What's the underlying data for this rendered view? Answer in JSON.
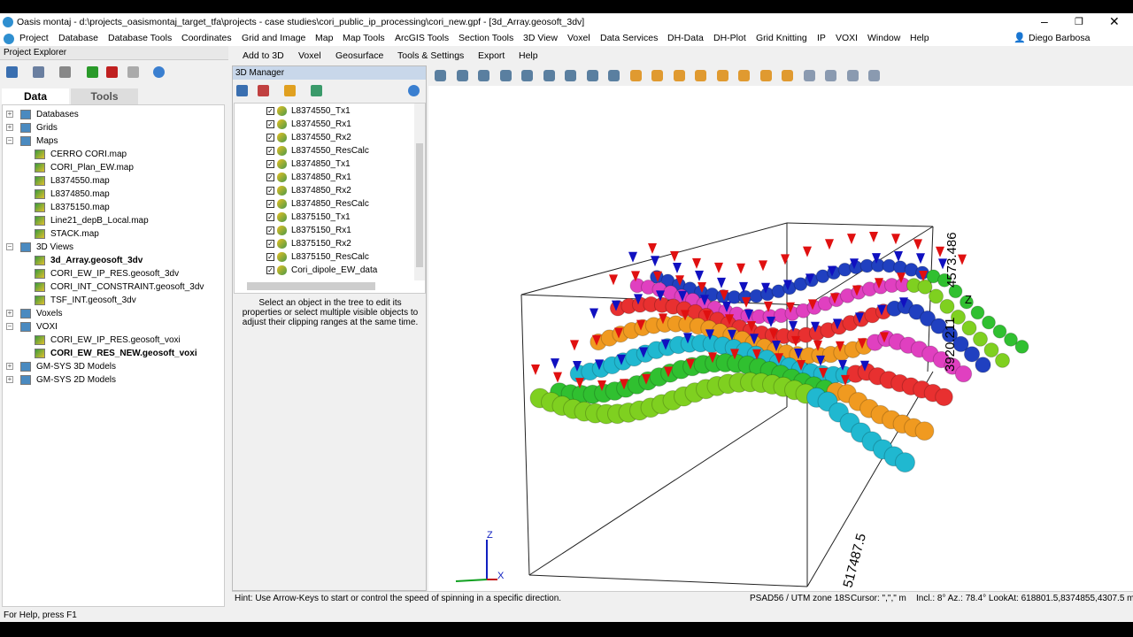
{
  "window": {
    "title": "Oasis montaj - d:\\projects_oasismontaj_target_tfa\\projects - case studies\\cori_public_ip_processing\\cori_new.gpf - [3d_Array.geosoft_3dv]"
  },
  "menu": [
    "Project",
    "Database",
    "Database Tools",
    "Coordinates",
    "Grid and Image",
    "Map",
    "Map Tools",
    "ArcGIS Tools",
    "Section Tools",
    "3D View",
    "Voxel",
    "Data Services",
    "DH-Data",
    "DH-Plot",
    "Grid Knitting",
    "IP",
    "VOXI",
    "Window",
    "Help"
  ],
  "user": "Diego Barbosa",
  "project_explorer": {
    "title": "Project Explorer",
    "tabs": [
      "Data",
      "Tools"
    ],
    "tree": [
      {
        "label": "Databases"
      },
      {
        "label": "Grids"
      },
      {
        "label": "Maps",
        "children": [
          {
            "label": "CERRO CORI.map"
          },
          {
            "label": "CORI_Plan_EW.map"
          },
          {
            "label": "L8374550.map"
          },
          {
            "label": "L8374850.map"
          },
          {
            "label": "L8375150.map"
          },
          {
            "label": "Line21_depB_Local.map"
          },
          {
            "label": "STACK.map"
          }
        ]
      },
      {
        "label": "3D Views",
        "children": [
          {
            "label": "3d_Array.geosoft_3dv",
            "bold": true
          },
          {
            "label": "CORI_EW_IP_RES.geosoft_3dv"
          },
          {
            "label": "CORI_INT_CONSTRAINT.geosoft_3dv"
          },
          {
            "label": "TSF_INT.geosoft_3dv"
          }
        ]
      },
      {
        "label": "Voxels"
      },
      {
        "label": "VOXI",
        "children": [
          {
            "label": "CORI_EW_IP_RES.geosoft_voxi"
          },
          {
            "label": "CORI_EW_RES_NEW.geosoft_voxi",
            "bold": true
          }
        ]
      },
      {
        "label": "GM-SYS 3D Models"
      },
      {
        "label": "GM-SYS 2D Models"
      }
    ]
  },
  "view_menu": [
    "Add to 3D",
    "Voxel",
    "Geosurface",
    "Tools & Settings",
    "Export",
    "Help"
  ],
  "manager": {
    "title": "3D Manager",
    "items": [
      "L8374550_Tx1",
      "L8374550_Rx1",
      "L8374550_Rx2",
      "L8374550_ResCalc",
      "L8374850_Tx1",
      "L8374850_Rx1",
      "L8374850_Rx2",
      "L8374850_ResCalc",
      "L8375150_Tx1",
      "L8375150_Rx1",
      "L8375150_Rx2",
      "L8375150_ResCalc",
      "Cori_dipole_EW_data"
    ],
    "info": "Select an object in the tree to edit its properties or select multiple visible objects to adjust their clipping ranges at the same time."
  },
  "view_labels": {
    "z_max": "4573.486",
    "z_axis": "Z",
    "z_min": "3920.211",
    "x_value": "517487.5",
    "triad_z": "Z",
    "triad_x": "X"
  },
  "status": {
    "hint": "Hint: Use Arrow-Keys to start or control the speed of spinning in a specific direction.",
    "projection": "PSAD56 / UTM zone 18S",
    "cursor": "Cursor: \",\",\" m",
    "view": "Incl.: 8° Az.: 78.4° LookAt: 618801.5,8374855,4307.5 m"
  },
  "footer": "For Help, press F1"
}
